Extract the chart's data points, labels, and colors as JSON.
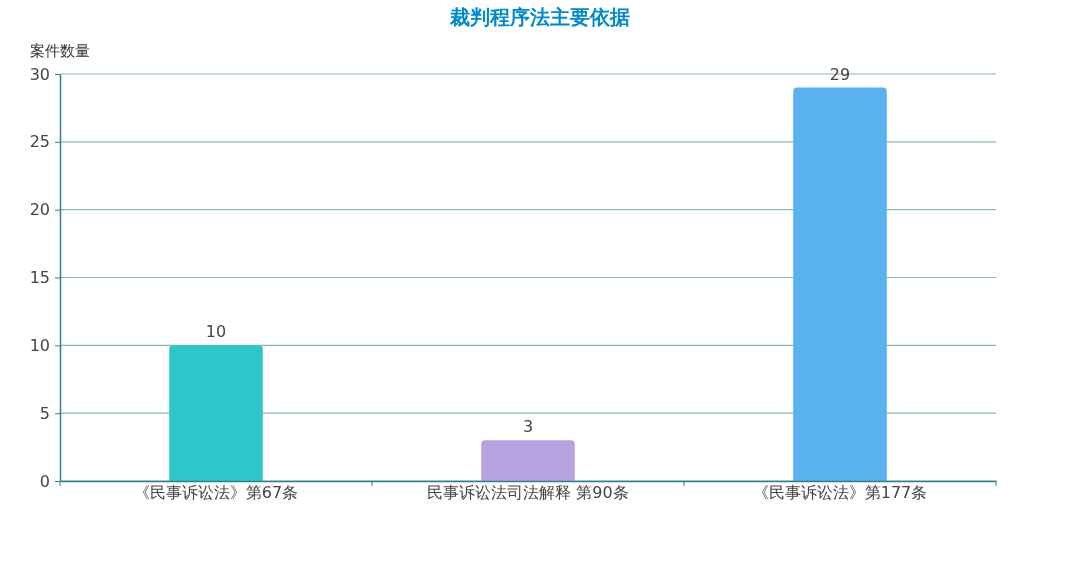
{
  "chart_data": {
    "type": "bar",
    "title": "裁判程序法主要依据",
    "ylabel": "案件数量",
    "categories": [
      "《民事诉讼法》第67条",
      "民事诉讼法司法解释 第90条",
      "《民事诉讼法》第177条"
    ],
    "values": [
      10,
      3,
      29
    ],
    "colors": [
      "#2ec7c9",
      "#b6a2de",
      "#5ab1ef"
    ],
    "ylim": [
      0,
      30
    ],
    "yticks": [
      0,
      5,
      10,
      15,
      20,
      25,
      30
    ],
    "grid": "y",
    "data_labels": true
  }
}
